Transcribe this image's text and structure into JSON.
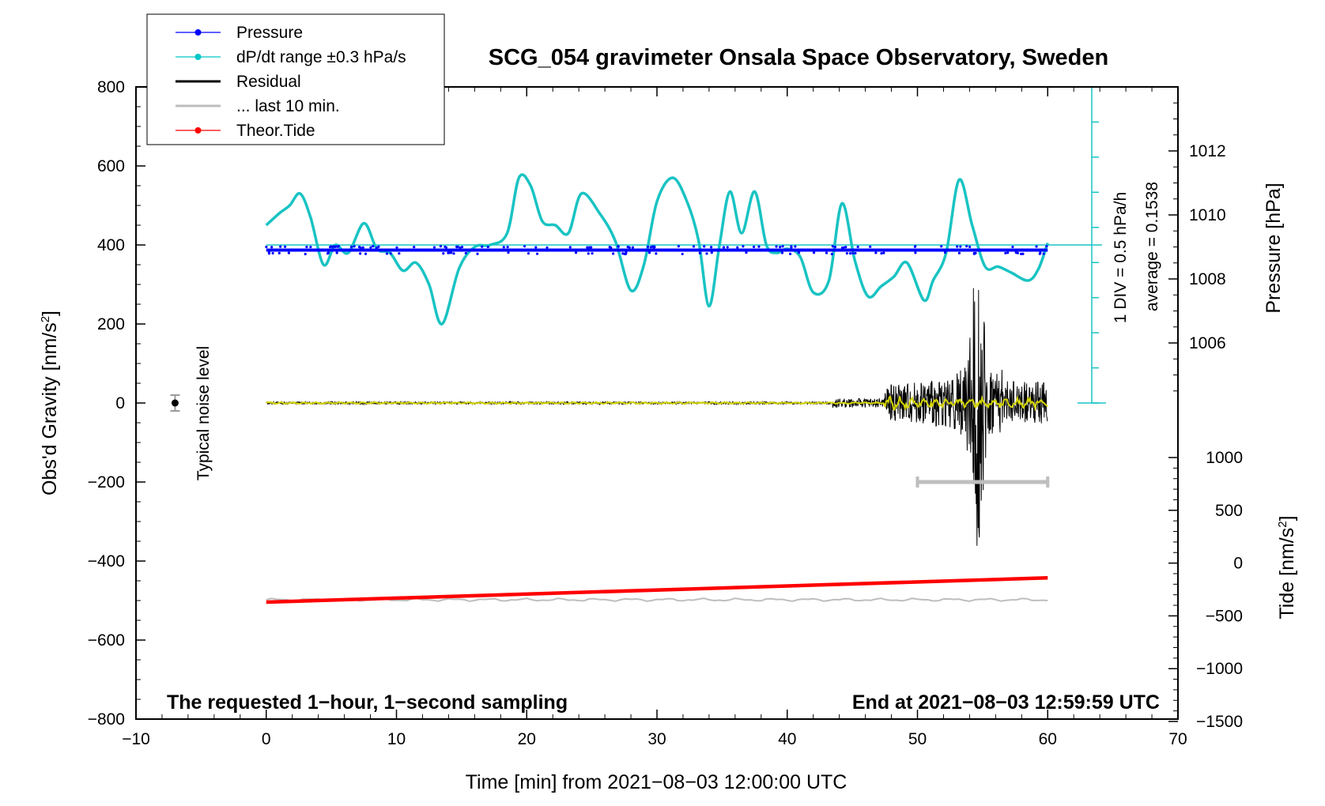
{
  "chart_data": {
    "type": "line",
    "title": "SCG_054 gravimeter Onsala Space Observatory, Sweden",
    "xlabel": "Time [min] from 2021−08−03 12:00:00 UTC",
    "ylabel_left": "Obs'd Gravity [nm/s",
    "ylabel_left_sup": "2",
    "ylabel_left_end": "]",
    "ylabel_right_top": "Pressure [hPa]",
    "ylabel_right_bottom": "Tide [nm/s",
    "ylabel_right_bottom_sup": "2",
    "ylabel_right_bottom_end": "]",
    "xlim": [
      -10,
      70
    ],
    "ylim_left": [
      -800,
      800
    ],
    "pressure_axis": [
      1004,
      1014
    ],
    "tide_axis": [
      -1500,
      1500
    ],
    "x_ticks": [
      "−10",
      "0",
      "10",
      "20",
      "30",
      "40",
      "50",
      "60",
      "70"
    ],
    "y_ticks_left": [
      "800",
      "600",
      "400",
      "200",
      "0",
      "−200",
      "−400",
      "−600",
      "−800"
    ],
    "y_ticks_pressure": [
      "1012",
      "1010",
      "1008",
      "1006"
    ],
    "y_ticks_tide": [
      "1000",
      "500",
      "0",
      "−500",
      "−1000",
      "−1500"
    ],
    "legend": [
      {
        "label": "Pressure",
        "color": "#0000ff",
        "marker": true
      },
      {
        "label": "dP/dt range ±0.3 hPa/s",
        "color": "#00c8c8",
        "marker": true
      },
      {
        "label": "Residual",
        "color": "#000000",
        "marker": false
      },
      {
        "label": "... last 10 min.",
        "color": "#bebebe",
        "marker": false
      },
      {
        "label": "Theor.Tide",
        "color": "#ff0000",
        "marker": true
      }
    ],
    "scale_bar_text_1": "1 DIV = 0.5 hPa/h",
    "scale_bar_text_2": "average = 0.1538",
    "noise_label": "Typical noise level",
    "annotation_left": "The requested 1−hour, 1−second sampling",
    "annotation_right": "End at 2021−08−03 12:59:59 UTC",
    "series": {
      "pressure": {
        "name": "Pressure",
        "color": "#0000ff",
        "x": [
          0,
          60
        ],
        "hPa": [
          1008.9,
          1008.9
        ]
      },
      "dpdt": {
        "name": "dP/dt range ±0.3 hPa/s",
        "color": "#19c3c3",
        "x": [
          0,
          1,
          1.8,
          2.6,
          3.4,
          4.4,
          5.3,
          6.3,
          7.5,
          8.5,
          9.5,
          10.5,
          11.5,
          12.5,
          13.5,
          14.8,
          16,
          17.2,
          18.5,
          19.4,
          20.3,
          21.2,
          22.2,
          23.2,
          24.2,
          25.6,
          26.8,
          28,
          29,
          30,
          31.2,
          32.3,
          33.2,
          34,
          34.8,
          35.6,
          36.5,
          37.5,
          38.4,
          39.2,
          40,
          41,
          42,
          43.2,
          44.2,
          45.2,
          46.2,
          47.2,
          48.2,
          49.2,
          50.5,
          51.2,
          52.2,
          53.2,
          54.2,
          55.2,
          56.2,
          57.2,
          58.5,
          59.3,
          60
        ],
        "y": [
          450,
          480,
          500,
          530,
          470,
          350,
          400,
          380,
          455,
          390,
          380,
          335,
          355,
          300,
          200,
          340,
          395,
          400,
          430,
          570,
          550,
          460,
          450,
          430,
          530,
          480,
          410,
          285,
          350,
          510,
          570,
          510,
          410,
          245,
          400,
          535,
          430,
          535,
          400,
          380,
          390,
          370,
          280,
          310,
          505,
          360,
          270,
          295,
          320,
          355,
          260,
          310,
          380,
          565,
          450,
          345,
          345,
          330,
          310,
          340,
          405
        ]
      },
      "residual": {
        "name": "Residual",
        "color": "#000000",
        "quiet_until": 43.5,
        "max_amplitude": 370,
        "min_amplitude": -390
      },
      "last10": {
        "name": "... last 10 min.",
        "color": "#bebebe",
        "x_range": [
          50,
          60
        ],
        "y": -200
      },
      "tide": {
        "name": "Theor.Tide",
        "color": "#ff0000",
        "x": [
          0,
          60
        ],
        "nm_s2": [
          -370,
          -140
        ]
      },
      "tide_ref": {
        "color": "#bebebe",
        "x": [
          0,
          60
        ],
        "y": [
          -498,
          -498
        ]
      },
      "pressure_ref_line": {
        "color": "#19c3c3",
        "y": 400
      },
      "noise_marker": {
        "x": -7,
        "y": 0,
        "err": 20
      }
    }
  }
}
